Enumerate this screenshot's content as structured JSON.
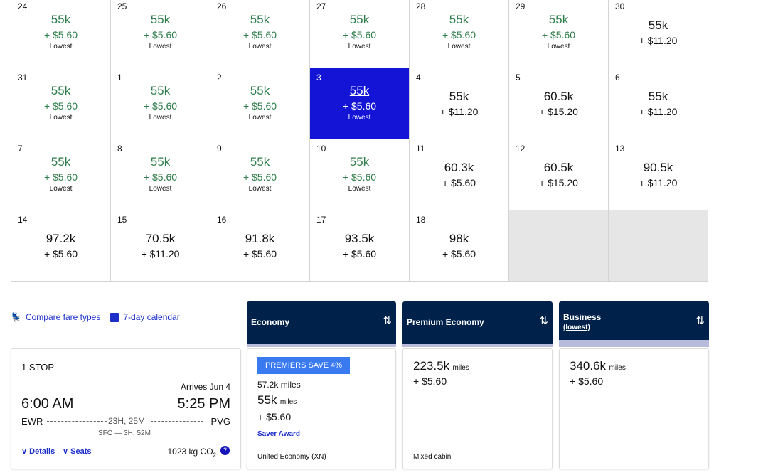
{
  "calendar": [
    {
      "day": "24",
      "miles": "55k",
      "fee": "+ $5.60",
      "tag": "Lowest"
    },
    {
      "day": "25",
      "miles": "55k",
      "fee": "+ $5.60",
      "tag": "Lowest"
    },
    {
      "day": "26",
      "miles": "55k",
      "fee": "+ $5.60",
      "tag": "Lowest"
    },
    {
      "day": "27",
      "miles": "55k",
      "fee": "+ $5.60",
      "tag": "Lowest"
    },
    {
      "day": "28",
      "miles": "55k",
      "fee": "+ $5.60",
      "tag": "Lowest"
    },
    {
      "day": "29",
      "miles": "55k",
      "fee": "+ $5.60",
      "tag": "Lowest"
    },
    {
      "day": "30",
      "miles": "55k",
      "fee": "+ $11.20"
    },
    {
      "day": "31",
      "miles": "55k",
      "fee": "+ $5.60",
      "tag": "Lowest"
    },
    {
      "day": "1",
      "miles": "55k",
      "fee": "+ $5.60",
      "tag": "Lowest"
    },
    {
      "day": "2",
      "miles": "55k",
      "fee": "+ $5.60",
      "tag": "Lowest"
    },
    {
      "day": "3",
      "miles": "55k",
      "fee": "+ $5.60",
      "tag": "Lowest",
      "selected": true
    },
    {
      "day": "4",
      "miles": "55k",
      "fee": "+ $11.20"
    },
    {
      "day": "5",
      "miles": "60.5k",
      "fee": "+ $15.20"
    },
    {
      "day": "6",
      "miles": "55k",
      "fee": "+ $11.20"
    },
    {
      "day": "7",
      "miles": "55k",
      "fee": "+ $5.60",
      "tag": "Lowest"
    },
    {
      "day": "8",
      "miles": "55k",
      "fee": "+ $5.60",
      "tag": "Lowest"
    },
    {
      "day": "9",
      "miles": "55k",
      "fee": "+ $5.60",
      "tag": "Lowest"
    },
    {
      "day": "10",
      "miles": "55k",
      "fee": "+ $5.60",
      "tag": "Lowest"
    },
    {
      "day": "11",
      "miles": "60.3k",
      "fee": "+ $5.60"
    },
    {
      "day": "12",
      "miles": "60.5k",
      "fee": "+ $15.20"
    },
    {
      "day": "13",
      "miles": "90.5k",
      "fee": "+ $11.20"
    },
    {
      "day": "14",
      "miles": "97.2k",
      "fee": "+ $5.60"
    },
    {
      "day": "15",
      "miles": "70.5k",
      "fee": "+ $11.20"
    },
    {
      "day": "16",
      "miles": "91.8k",
      "fee": "+ $5.60"
    },
    {
      "day": "17",
      "miles": "93.5k",
      "fee": "+ $5.60"
    },
    {
      "day": "18",
      "miles": "98k",
      "fee": "+ $5.60"
    },
    {
      "empty": true
    },
    {
      "empty": true
    }
  ],
  "links": {
    "compare": "Compare fare types",
    "calendar7": "7-day calendar"
  },
  "flight": {
    "stops": "1 STOP",
    "arrives": "Arrives Jun 4",
    "depart_time": "6:00 AM",
    "arrive_time": "5:25 PM",
    "origin": "EWR",
    "destination": "PVG",
    "duration": "23H, 25M",
    "layover": "SFO — 3H, 52M",
    "details": "Details",
    "seats": "Seats",
    "co2": "1023 kg CO",
    "co2_sub": "2"
  },
  "fares": {
    "economy": {
      "header": "Economy",
      "badge": "PREMIERS SAVE 4%",
      "old": "57.2k miles",
      "miles": "55k",
      "unit": "miles",
      "fee": "+ $5.60",
      "award": "Saver Award",
      "cabin": "United Economy (XN)"
    },
    "premium": {
      "header": "Premium Economy",
      "miles": "223.5k",
      "unit": "miles",
      "fee": "+ $5.60",
      "cabin": "Mixed cabin"
    },
    "business": {
      "header": "Business",
      "sub": "(lowest)",
      "miles": "340.6k",
      "unit": "miles",
      "fee": "+ $5.60"
    }
  },
  "colors": {
    "lowest": "#2f7d4b",
    "selected": "#1414d6",
    "header": "#00224a",
    "link": "#1c2fc9"
  }
}
